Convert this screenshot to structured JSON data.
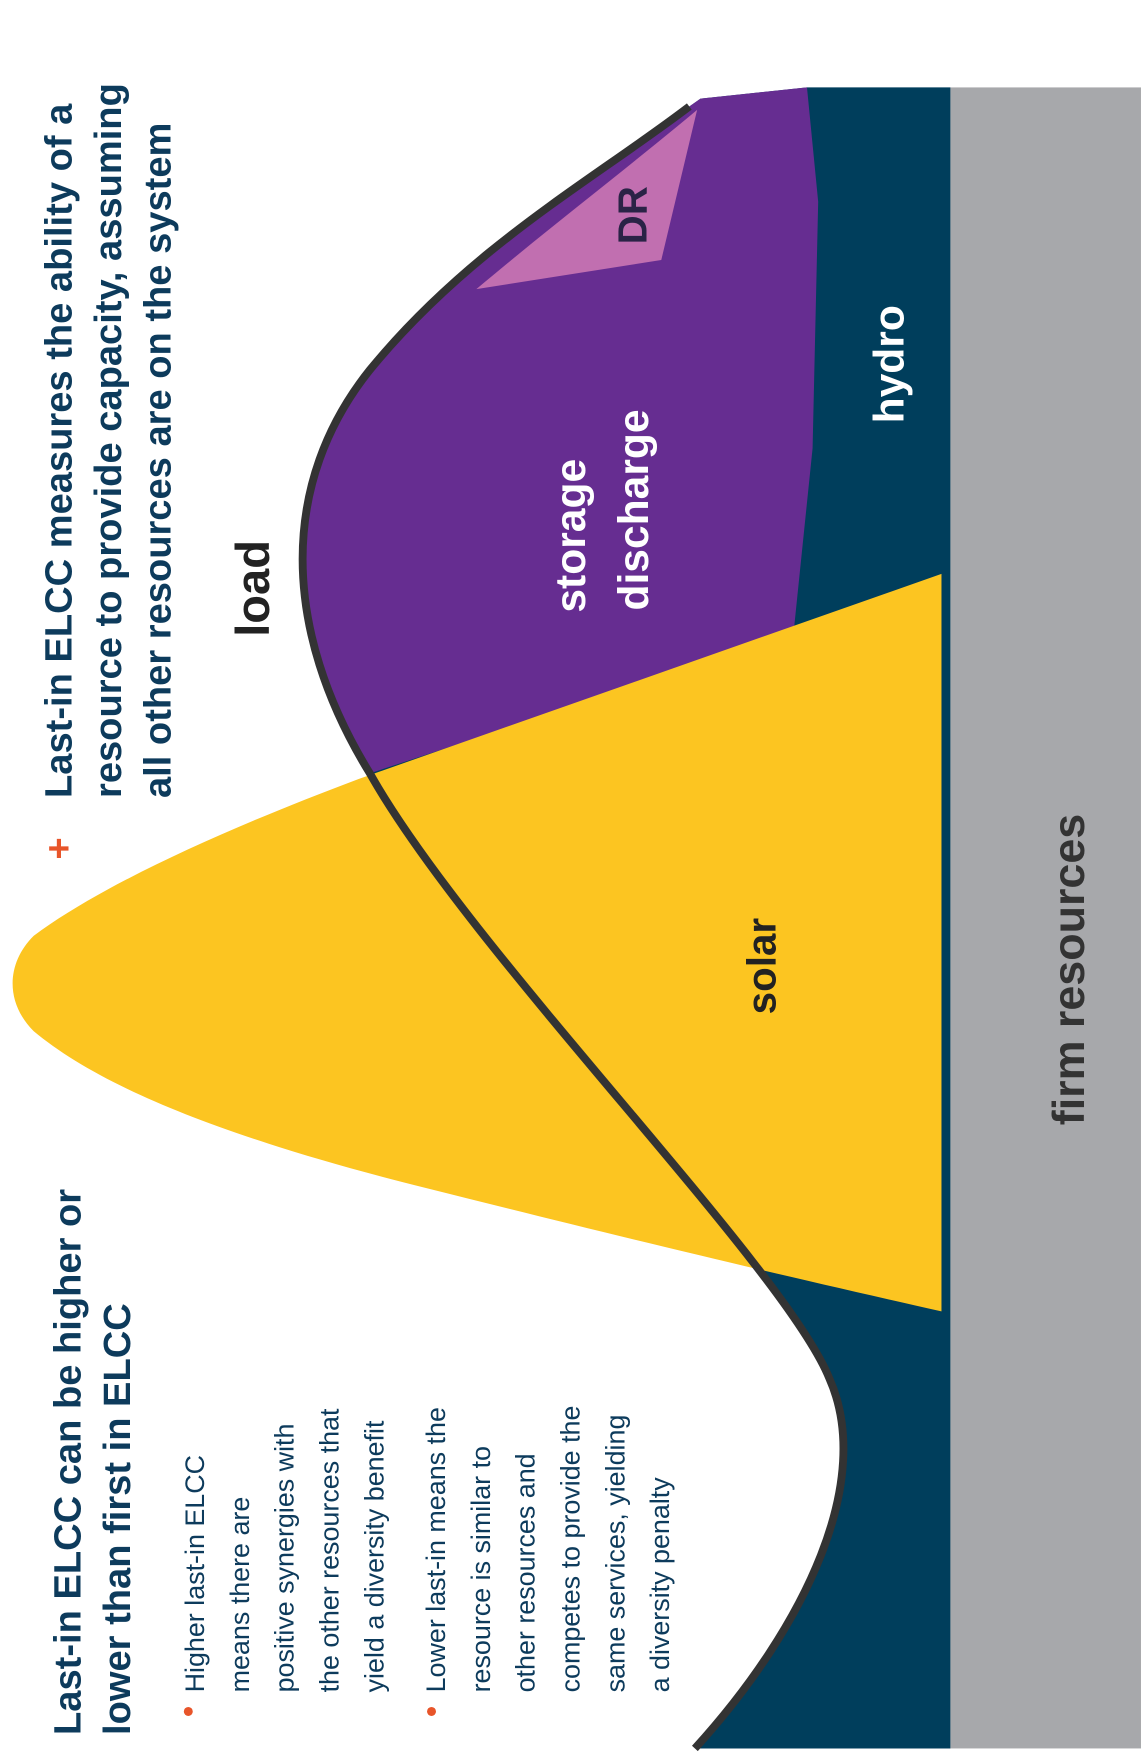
{
  "left_panel": {
    "heading": [
      "Last-in ELCC can be higher or",
      "lower than first in ELCC"
    ],
    "bullets": [
      [
        "Higher last-in ELCC",
        "means there are",
        "positive synergies with",
        "the other resources that",
        "yield a diversity benefit"
      ],
      [
        "Lower last-in means the",
        "resource is similar to",
        "other resources and",
        "competes to provide the",
        "same services, yielding",
        "a diversity penalty"
      ]
    ]
  },
  "callout": {
    "marker": "+",
    "lines": [
      "Last-in ELCC measures the ability of a",
      "resource to provide capacity, assuming",
      "all other resources are on the system"
    ]
  },
  "labels": {
    "load": "load",
    "storage": [
      "storage",
      "discharge"
    ],
    "dr": "DR",
    "hydro": "hydro",
    "solar": "solar",
    "firm": "firm resources"
  }
}
